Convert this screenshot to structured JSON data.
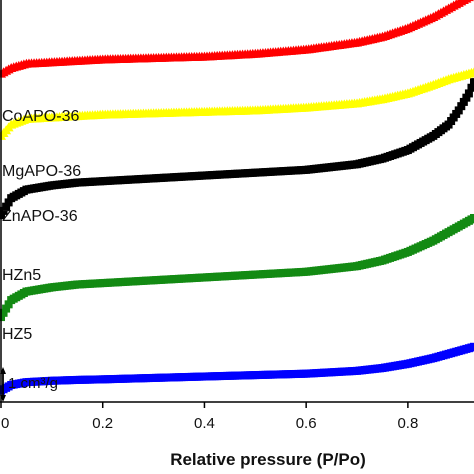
{
  "chart_data": {
    "type": "scatter",
    "title": "",
    "xlabel": "Relative pressure (P/Po)",
    "ylabel": "",
    "xlim": [
      0,
      0.93
    ],
    "ylim": [
      0,
      14.2
    ],
    "x_ticks": [
      "0",
      "0.2",
      "0.4",
      "0.6",
      "0.8"
    ],
    "x_tick_values": [
      0,
      0.2,
      0.4,
      0.6,
      0.8
    ],
    "grid": false,
    "scale_bar": {
      "label": "1 cm³/g",
      "value": 1
    },
    "series": [
      {
        "name": "HZ5",
        "color": "#0000ff",
        "marker": "square",
        "x": [
          0.0,
          0.02,
          0.05,
          0.1,
          0.15,
          0.2,
          0.3,
          0.4,
          0.5,
          0.6,
          0.7,
          0.75,
          0.8,
          0.85,
          0.88,
          0.9,
          0.92,
          0.93
        ],
        "y": [
          0.4,
          0.6,
          0.7,
          0.75,
          0.78,
          0.8,
          0.85,
          0.9,
          0.95,
          1.0,
          1.1,
          1.2,
          1.35,
          1.55,
          1.7,
          1.8,
          1.9,
          1.95
        ]
      },
      {
        "name": "HZn5",
        "color": "#138a13",
        "marker": "square",
        "x": [
          0.0,
          0.02,
          0.05,
          0.1,
          0.15,
          0.2,
          0.3,
          0.4,
          0.5,
          0.6,
          0.7,
          0.75,
          0.8,
          0.85,
          0.88,
          0.9,
          0.92,
          0.93
        ],
        "y": [
          3.0,
          3.6,
          3.9,
          4.05,
          4.15,
          4.2,
          4.3,
          4.4,
          4.5,
          4.6,
          4.8,
          5.0,
          5.3,
          5.7,
          6.0,
          6.2,
          6.4,
          6.5
        ]
      },
      {
        "name": "ZnAPO-36",
        "color": "#000000",
        "marker": "square",
        "x": [
          0.0,
          0.02,
          0.05,
          0.1,
          0.15,
          0.2,
          0.3,
          0.4,
          0.5,
          0.6,
          0.7,
          0.75,
          0.8,
          0.85,
          0.88,
          0.9,
          0.92,
          0.93
        ],
        "y": [
          6.6,
          7.2,
          7.5,
          7.65,
          7.75,
          7.8,
          7.9,
          8.0,
          8.1,
          8.2,
          8.4,
          8.6,
          8.9,
          9.4,
          9.8,
          10.3,
          10.9,
          11.3
        ]
      },
      {
        "name": "MgAPO-36",
        "color": "#ffff00",
        "marker": "triangle",
        "x": [
          0.0,
          0.02,
          0.05,
          0.1,
          0.15,
          0.2,
          0.3,
          0.4,
          0.5,
          0.6,
          0.7,
          0.75,
          0.8,
          0.85,
          0.88,
          0.9,
          0.92,
          0.93
        ],
        "y": [
          9.4,
          9.8,
          10.0,
          10.05,
          10.1,
          10.15,
          10.2,
          10.25,
          10.3,
          10.4,
          10.55,
          10.7,
          10.9,
          11.2,
          11.4,
          11.5,
          11.6,
          11.65
        ]
      },
      {
        "name": "CoAPO-36",
        "color": "#ff0000",
        "marker": "triangle",
        "x": [
          0.0,
          0.02,
          0.05,
          0.1,
          0.15,
          0.2,
          0.3,
          0.4,
          0.5,
          0.6,
          0.7,
          0.75,
          0.8,
          0.85,
          0.88,
          0.9,
          0.92,
          0.93
        ],
        "y": [
          11.6,
          11.8,
          11.95,
          12.0,
          12.05,
          12.1,
          12.15,
          12.2,
          12.3,
          12.45,
          12.7,
          12.9,
          13.2,
          13.6,
          13.9,
          14.1,
          14.3,
          14.4
        ]
      }
    ]
  }
}
